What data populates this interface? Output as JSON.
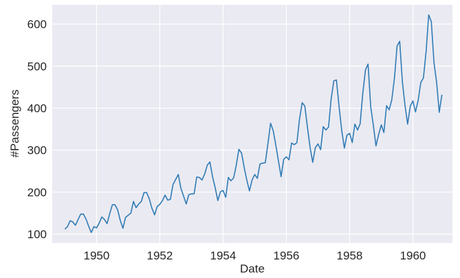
{
  "chart_data": {
    "type": "line",
    "title": "",
    "xlabel": "Date",
    "ylabel": "#Passengers",
    "x_start": "1949-01",
    "x_end": "1960-12",
    "frequency": "monthly",
    "xlim": [
      1948.6,
      1961.25
    ],
    "ylim": [
      79,
      646
    ],
    "xticks": [
      1950,
      1952,
      1954,
      1956,
      1958,
      1960
    ],
    "yticks": [
      100,
      200,
      300,
      400,
      500,
      600
    ],
    "grid": true,
    "legend": null,
    "colors": {
      "line": "#2f7bb5",
      "background": "#eaeaf2",
      "grid": "#ffffff"
    },
    "series": [
      {
        "name": "#Passengers",
        "values": [
          112,
          118,
          132,
          129,
          121,
          135,
          148,
          148,
          136,
          119,
          104,
          118,
          115,
          126,
          141,
          135,
          125,
          149,
          170,
          170,
          158,
          133,
          114,
          140,
          145,
          150,
          178,
          163,
          172,
          178,
          199,
          199,
          184,
          162,
          146,
          166,
          171,
          180,
          193,
          181,
          183,
          218,
          230,
          242,
          209,
          191,
          172,
          194,
          196,
          196,
          236,
          235,
          229,
          243,
          264,
          272,
          237,
          211,
          180,
          201,
          204,
          188,
          235,
          227,
          234,
          264,
          302,
          293,
          259,
          229,
          203,
          229,
          242,
          233,
          267,
          269,
          270,
          315,
          364,
          347,
          312,
          274,
          237,
          278,
          284,
          277,
          317,
          313,
          318,
          374,
          413,
          405,
          355,
          306,
          271,
          306,
          315,
          301,
          356,
          348,
          355,
          422,
          465,
          467,
          404,
          347,
          305,
          336,
          340,
          318,
          362,
          348,
          363,
          435,
          491,
          505,
          404,
          359,
          310,
          337,
          360,
          342,
          406,
          396,
          420,
          472,
          548,
          559,
          463,
          407,
          362,
          405,
          417,
          391,
          419,
          461,
          472,
          535,
          622,
          606,
          508,
          461,
          390,
          432
        ]
      }
    ]
  }
}
